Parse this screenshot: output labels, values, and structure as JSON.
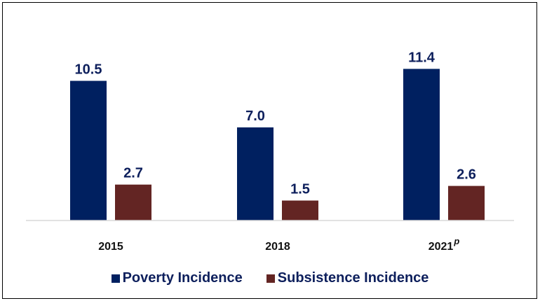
{
  "chart_data": {
    "type": "bar",
    "categories": [
      "2015",
      "2018",
      "2021"
    ],
    "category_superscripts": [
      "",
      "",
      "p"
    ],
    "series": [
      {
        "name": "Poverty Incidence",
        "values": [
          10.5,
          7.0,
          11.4
        ],
        "value_labels": [
          "10.5",
          "7.0",
          "11.4"
        ],
        "color": "#002060"
      },
      {
        "name": "Subsistence Incidence",
        "values": [
          2.7,
          1.5,
          2.6
        ],
        "value_labels": [
          "2.7",
          "1.5",
          "2.6"
        ],
        "color": "#632523"
      }
    ],
    "ylim": [
      0,
      12
    ],
    "grid": false,
    "legend_position": "bottom-center"
  }
}
